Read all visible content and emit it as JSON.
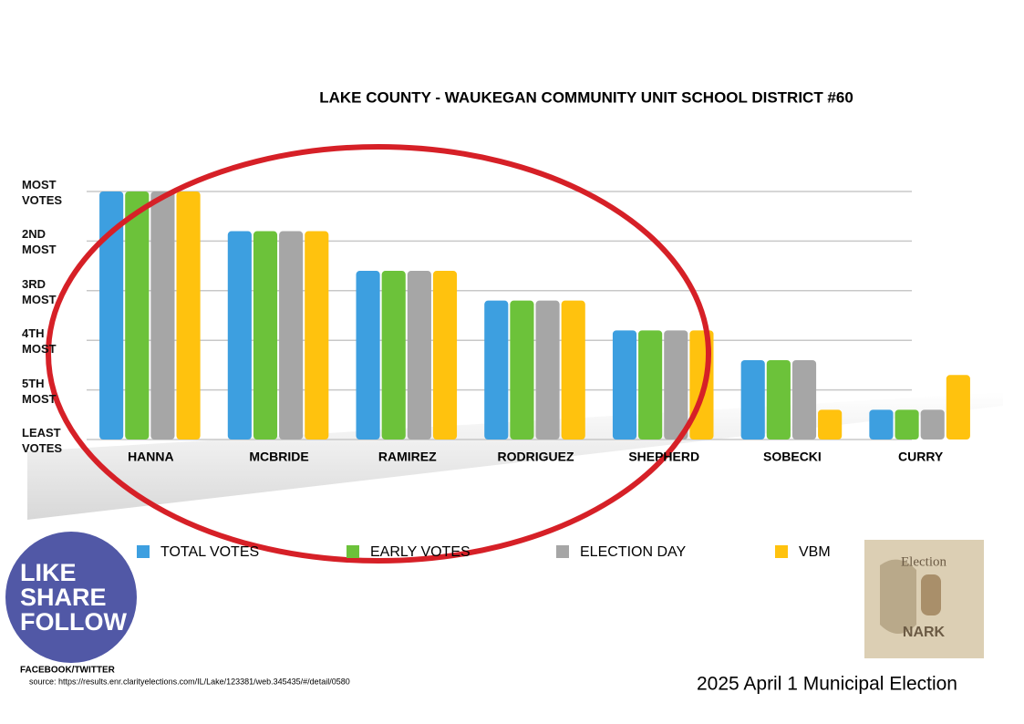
{
  "chart_data": {
    "type": "bar",
    "title": "LAKE COUNTY - WAUKEGAN COMMUNITY UNIT SCHOOL DISTRICT #60",
    "categories": [
      "HANNA",
      "MCBRIDE",
      "RAMIREZ",
      "RODRIGUEZ",
      "SHEPHERD",
      "SOBECKI",
      "CURRY"
    ],
    "series": [
      {
        "name": "TOTAL VOTES",
        "color": "#3d9fe0",
        "values": [
          5,
          4.2,
          3.4,
          2.8,
          2.2,
          1.6,
          0.6
        ]
      },
      {
        "name": "EARLY VOTES",
        "color": "#6cc23a",
        "values": [
          5,
          4.2,
          3.4,
          2.8,
          2.2,
          1.6,
          0.6
        ]
      },
      {
        "name": "ELECTION DAY",
        "color": "#a6a6a6",
        "values": [
          5,
          4.2,
          3.4,
          2.8,
          2.2,
          1.6,
          0.6
        ]
      },
      {
        "name": "VBM",
        "color": "#ffc20e",
        "values": [
          5,
          4.2,
          3.4,
          2.8,
          2.2,
          0.6,
          1.3
        ]
      }
    ],
    "ylim": [
      0,
      5
    ],
    "yticks": [
      {
        "value": 5,
        "label": "MOST VOTES"
      },
      {
        "value": 4,
        "label": "2ND MOST"
      },
      {
        "value": 3,
        "label": "3RD MOST"
      },
      {
        "value": 2,
        "label": "4TH MOST"
      },
      {
        "value": 1,
        "label": "5TH MOST"
      },
      {
        "value": 0,
        "label": "LEAST VOTES"
      }
    ],
    "grid": true
  },
  "badge": {
    "lines": [
      "LIKE",
      "SHARE",
      "FOLLOW"
    ],
    "caption": "FACEBOOK/TWITTER"
  },
  "source": "source: https://results.enr.clarityelections.com/IL/Lake/123381/web.345435/#/detail/0580",
  "footer": "2025 April 1 Municipal Election",
  "logo": {
    "top": "Election",
    "bottom": "NARK"
  }
}
